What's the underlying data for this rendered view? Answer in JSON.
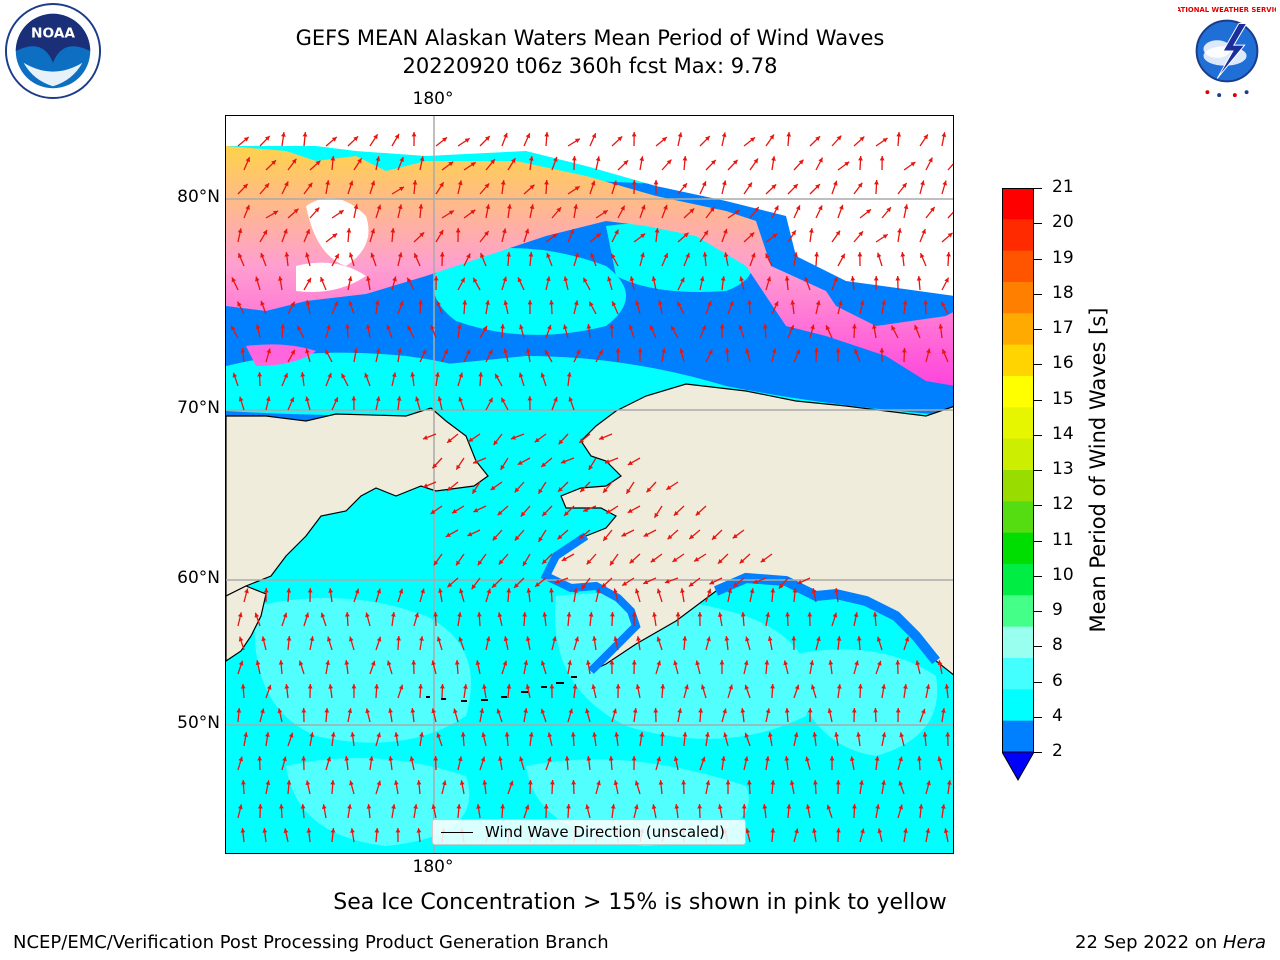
{
  "title": {
    "line1": "GEFS MEAN Alaskan Waters Mean Period of Wind Waves",
    "line2": "20220920 t06z 360h fcst   Max: 9.78"
  },
  "map": {
    "lat_labels": [
      "80°N",
      "70°N",
      "60°N",
      "50°N"
    ],
    "lon_label_top": "180°",
    "lon_label_bottom": "180°",
    "legend_label": "Wind Wave Direction (unscaled)",
    "arrow_color": "#e8150f",
    "land_color": "#efecdc",
    "ocean_color": "#00ffff"
  },
  "colorbar": {
    "label": "Mean Period of Wind Waves [s]",
    "ticks": [
      "21",
      "20",
      "19",
      "18",
      "17",
      "16",
      "15",
      "14",
      "13",
      "12",
      "11",
      "10",
      "9",
      "8",
      "6",
      "4",
      "2"
    ],
    "colors": [
      "#ff0000",
      "#ff2a00",
      "#ff5500",
      "#ff8000",
      "#ffaa00",
      "#ffd400",
      "#ffff00",
      "#e6f500",
      "#ccee00",
      "#99dd00",
      "#55dd11",
      "#00dd00",
      "#00ee44",
      "#44ff88",
      "#99ffee",
      "#44ffff",
      "#00ffff",
      "#0080ff"
    ],
    "under_color": "#0000ff"
  },
  "subtitle": "Sea Ice Concentration > 15% is shown in pink to yellow",
  "footer": {
    "left": "NCEP/EMC/Verification Post Processing Product Generation Branch",
    "right_prefix": "22 Sep 2022 on ",
    "right_host": "Hera"
  },
  "logos": {
    "left_text": "NOAA",
    "right_text": "NATIONAL WEATHER SERVICE"
  }
}
